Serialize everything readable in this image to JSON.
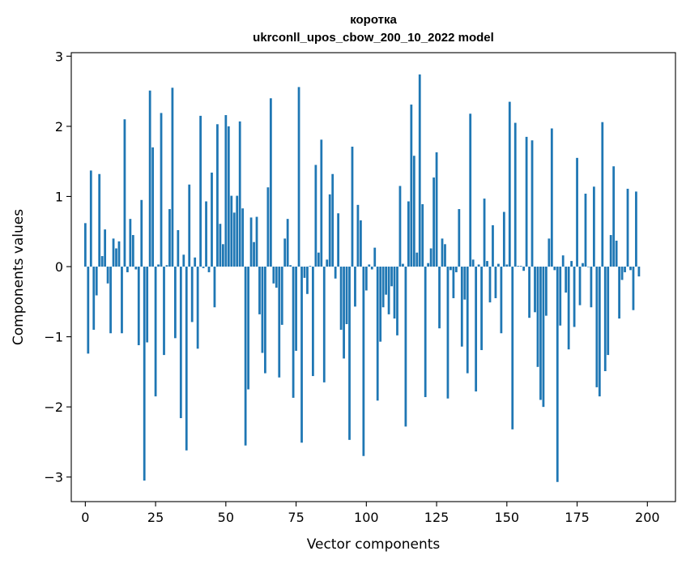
{
  "chart_data": {
    "type": "bar",
    "title": "коротка",
    "subtitle": "ukrconll_upos_cbow_200_10_2022 model",
    "xlabel": "Vector components",
    "ylabel": "Components values",
    "xlim": [
      -5,
      210
    ],
    "ylim": [
      -3.35,
      3.05
    ],
    "xticks": [
      0,
      25,
      50,
      75,
      100,
      125,
      150,
      175,
      200
    ],
    "yticks": [
      -3,
      -2,
      -1,
      0,
      1,
      2,
      3
    ],
    "ytick_labels": [
      "−3",
      "−2",
      "−1",
      "0",
      "1",
      "2",
      "3"
    ],
    "grid": false,
    "color": "#1f77b4",
    "x_start": 0,
    "values": [
      0.62,
      -1.24,
      1.37,
      -0.9,
      -0.41,
      1.32,
      0.15,
      0.53,
      -0.24,
      -0.95,
      0.4,
      0.26,
      0.36,
      -0.95,
      2.1,
      -0.08,
      0.68,
      0.45,
      -0.04,
      -1.12,
      0.95,
      -3.05,
      -1.08,
      2.51,
      1.7,
      -1.85,
      0.03,
      2.19,
      -1.26,
      0.02,
      0.82,
      2.55,
      -1.02,
      0.52,
      -2.16,
      0.17,
      -2.62,
      1.17,
      -0.79,
      0.13,
      -1.17,
      2.15,
      -0.02,
      0.93,
      -0.08,
      1.34,
      -0.58,
      2.03,
      0.61,
      0.32,
      2.16,
      2.0,
      1.01,
      0.77,
      1.01,
      2.07,
      0.83,
      -2.55,
      -1.75,
      0.7,
      0.35,
      0.71,
      -0.68,
      -1.23,
      -1.52,
      1.13,
      2.4,
      -0.24,
      -0.3,
      -1.58,
      -0.83,
      0.4,
      0.68,
      0.02,
      -1.87,
      -1.2,
      2.56,
      -2.51,
      -0.16,
      -0.39,
      0.01,
      -1.56,
      1.45,
      0.2,
      1.81,
      -1.65,
      0.1,
      1.03,
      1.32,
      -0.17,
      0.76,
      -0.9,
      -1.31,
      -0.82,
      -2.47,
      1.71,
      -0.57,
      0.88,
      0.66,
      -2.7,
      -0.34,
      0.03,
      -0.04,
      0.27,
      -1.91,
      -1.07,
      -0.58,
      -0.4,
      -0.68,
      -0.28,
      -0.74,
      -0.98,
      1.15,
      0.04,
      -2.28,
      0.93,
      2.31,
      1.58,
      0.2,
      2.74,
      0.89,
      -1.86,
      0.05,
      0.26,
      1.27,
      1.63,
      -0.88,
      0.4,
      0.32,
      -1.88,
      -0.05,
      -0.45,
      -0.08,
      0.82,
      -1.14,
      -0.47,
      -1.52,
      2.18,
      0.1,
      -1.78,
      0.03,
      -1.19,
      0.97,
      0.08,
      -0.51,
      0.59,
      -0.45,
      0.04,
      -0.95,
      0.78,
      0.03,
      2.35,
      -2.32,
      2.05,
      0.01,
      0.01,
      -0.06,
      1.85,
      -0.73,
      1.8,
      -0.65,
      -1.43,
      -1.9,
      -2.0,
      -0.7,
      0.4,
      1.97,
      -0.05,
      -3.07,
      -0.84,
      0.16,
      -0.37,
      -1.18,
      0.08,
      -0.86,
      1.55,
      -0.55,
      0.05,
      1.04,
      0.0,
      -0.58,
      1.14,
      -1.72,
      -1.85,
      2.06,
      -1.49,
      -1.26,
      0.45,
      1.43,
      0.37,
      -0.74,
      -0.19,
      -0.08,
      1.11,
      -0.05,
      -0.62,
      1.07,
      -0.14
    ]
  }
}
